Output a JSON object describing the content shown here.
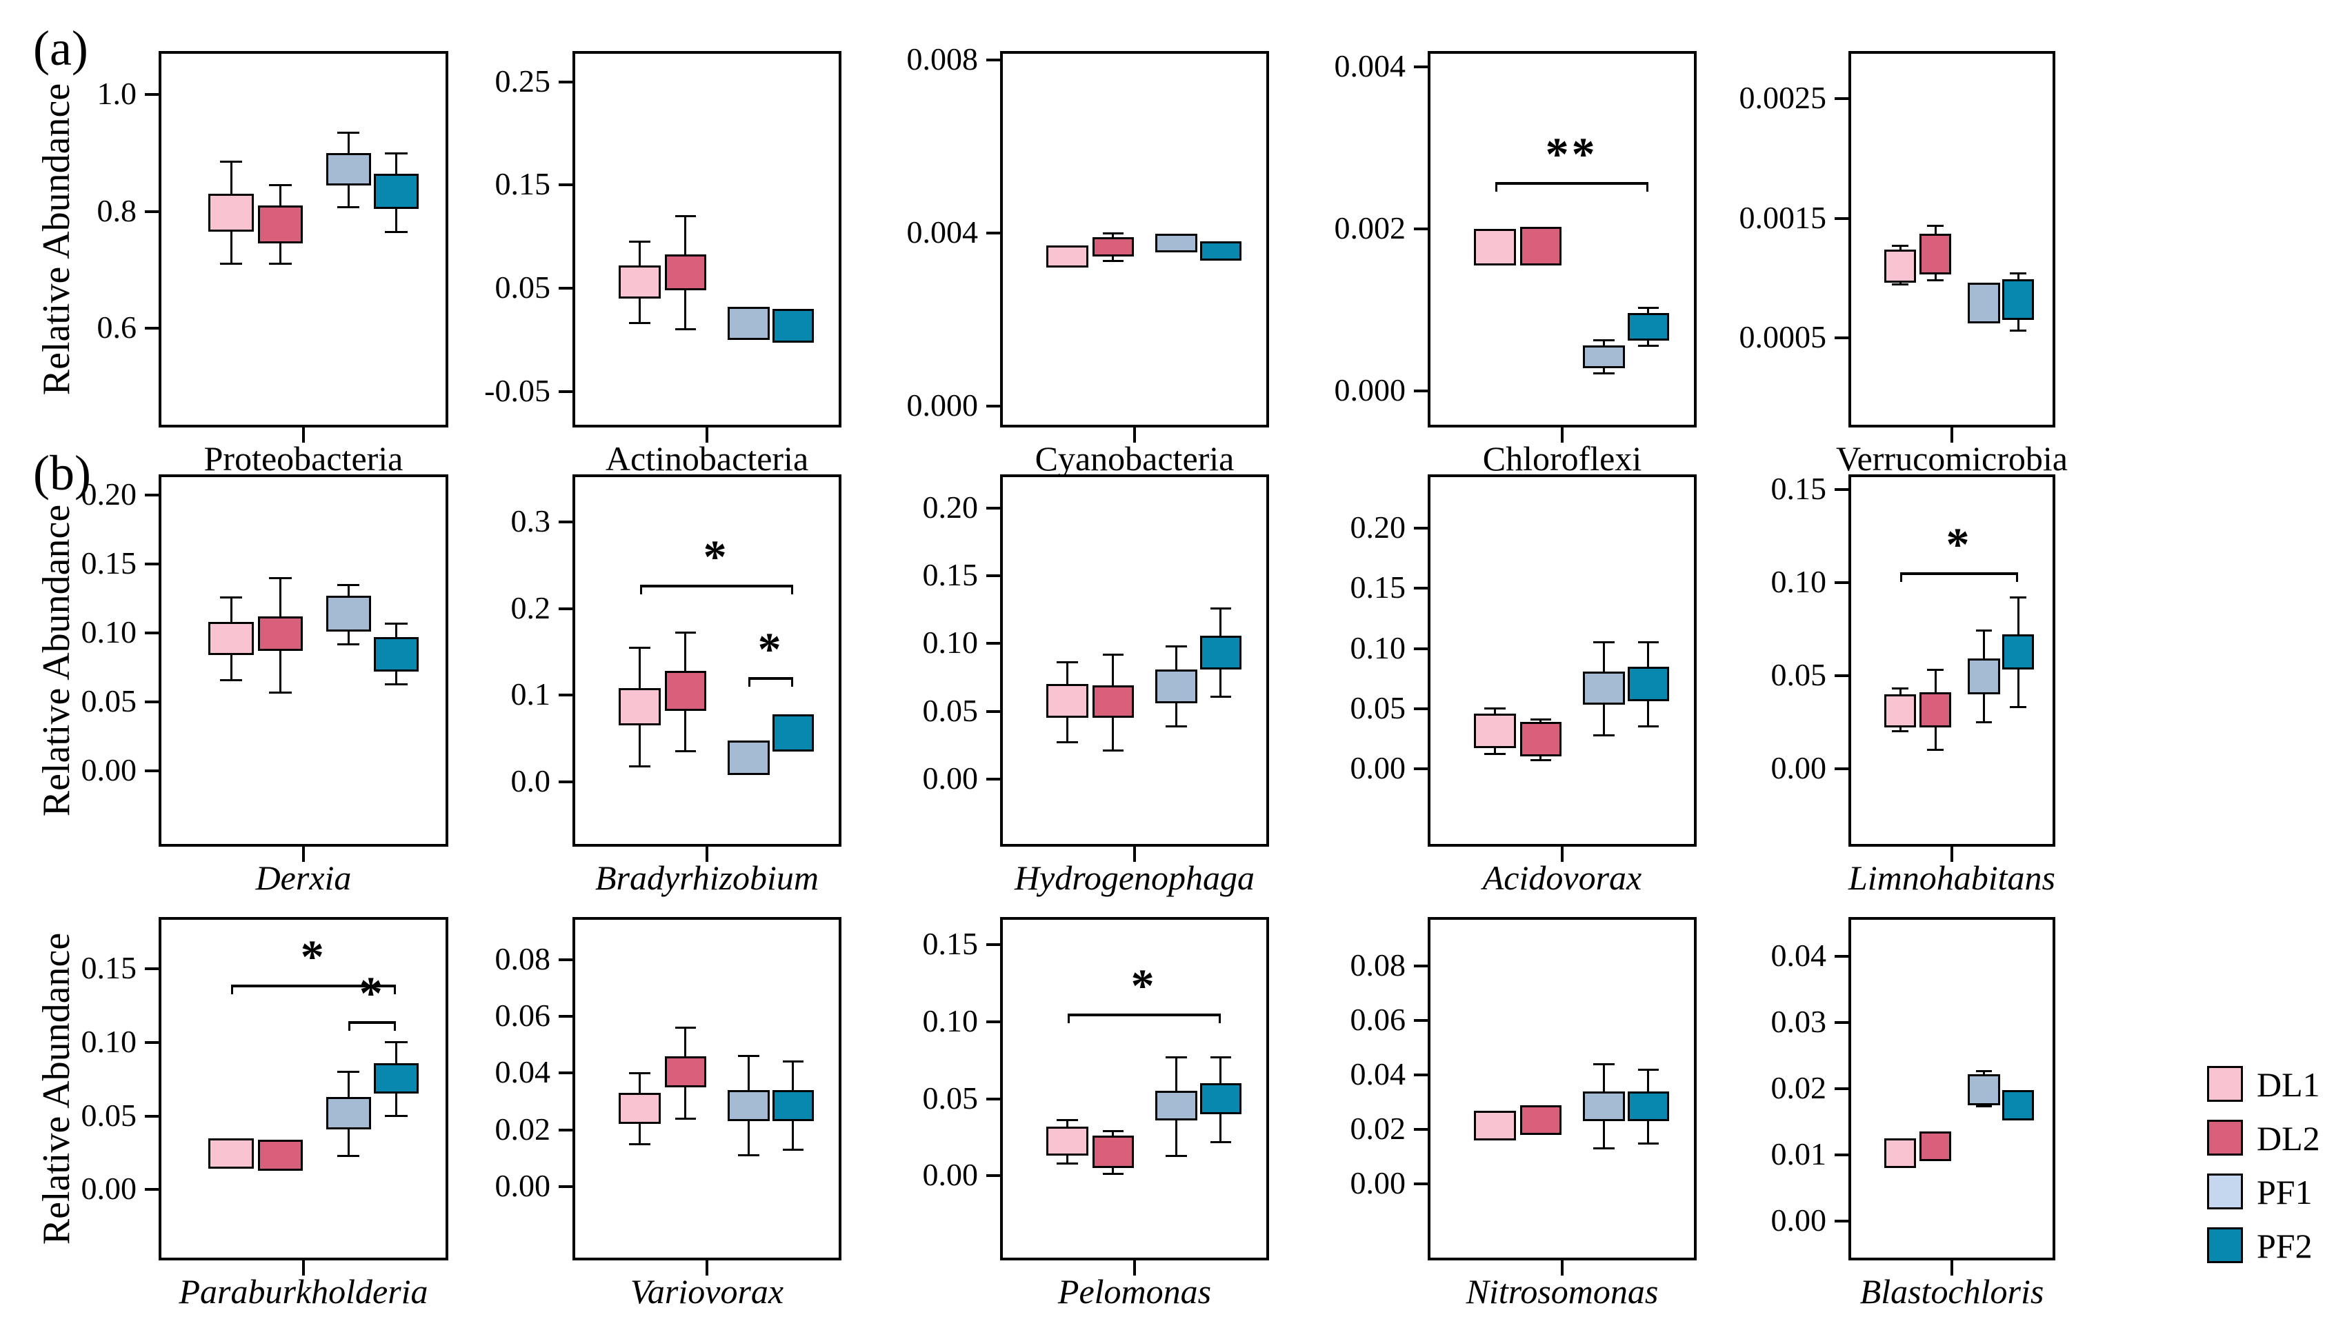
{
  "figure": {
    "panel_a_label": "(a)",
    "panel_b_label": "(b)"
  },
  "ylabel": "Relative Abundance",
  "legend": {
    "items": [
      {
        "label": "DL1",
        "color": "#F9C3D2"
      },
      {
        "label": "DL2",
        "color": "#D9607A"
      },
      {
        "label": "PF1",
        "color": "#C4D7EE"
      },
      {
        "label": "PF2",
        "color": "#0887AF"
      }
    ]
  },
  "series_colors": {
    "DL1": "#F9C3D2",
    "DL2": "#D9607A",
    "PF1": "#A5BBD3",
    "PF2": "#0887AF"
  },
  "chart_data": {
    "type": "grouped_boxplot",
    "groups": [
      "DL1",
      "DL2",
      "PF1",
      "PF2"
    ],
    "ylabel": "Relative Abundance",
    "legend_position": "bottom-right",
    "rows": [
      {
        "section": "a",
        "panels": [
          {
            "taxon": "Proteobacteria",
            "italic": false,
            "ymin": 0.43,
            "ymax": 1.075,
            "tick_values": [
              1.0,
              0.8,
              0.6
            ],
            "tick_labels": [
              "1.0",
              "0.8",
              "0.6"
            ],
            "boxes": [
              {
                "group": "DL1",
                "q1": 0.765,
                "q3": 0.83,
                "wlo": 0.71,
                "whi": 0.885
              },
              {
                "group": "DL2",
                "q1": 0.745,
                "q3": 0.81,
                "wlo": 0.71,
                "whi": 0.845
              },
              {
                "group": "PF1",
                "q1": 0.845,
                "q3": 0.9,
                "wlo": 0.808,
                "whi": 0.935
              },
              {
                "group": "PF2",
                "q1": 0.805,
                "q3": 0.865,
                "wlo": 0.765,
                "whi": 0.9
              }
            ],
            "brackets": []
          },
          {
            "taxon": "Actinobacteria",
            "italic": false,
            "ymin": -0.085,
            "ymax": 0.28,
            "tick_values": [
              0.25,
              0.15,
              0.05,
              -0.05
            ],
            "tick_labels": [
              "0.25",
              "0.15",
              "0.05",
              "-0.05"
            ],
            "boxes": [
              {
                "group": "DL1",
                "q1": 0.04,
                "q3": 0.072,
                "wlo": 0.016,
                "whi": 0.095
              },
              {
                "group": "DL2",
                "q1": 0.048,
                "q3": 0.083,
                "wlo": 0.01,
                "whi": 0.12
              },
              {
                "group": "PF1",
                "q1": 0.0,
                "q3": 0.032
              },
              {
                "group": "PF2",
                "q1": -0.003,
                "q3": 0.03
              }
            ],
            "brackets": []
          },
          {
            "taxon": "Cyanobacteria",
            "italic": false,
            "ymin": -0.0005,
            "ymax": 0.0082,
            "tick_values": [
              0.008,
              0.004,
              0.0
            ],
            "tick_labels": [
              "0.008",
              "0.004",
              "0.000"
            ],
            "boxes": [
              {
                "group": "DL1",
                "q1": 0.0032,
                "q3": 0.0037
              },
              {
                "group": "DL2",
                "q1": 0.00345,
                "q3": 0.0039,
                "wlo": 0.00335,
                "whi": 0.00398
              },
              {
                "group": "PF1",
                "q1": 0.00355,
                "q3": 0.00398
              },
              {
                "group": "PF2",
                "q1": 0.00335,
                "q3": 0.0038
              }
            ],
            "brackets": []
          },
          {
            "taxon": "Chloroflexi",
            "italic": false,
            "ymin": -0.00045,
            "ymax": 0.0042,
            "tick_values": [
              0.004,
              0.002,
              0.0
            ],
            "tick_labels": [
              "0.004",
              "0.002",
              "0.000"
            ],
            "boxes": [
              {
                "group": "DL1",
                "q1": 0.00155,
                "q3": 0.002
              },
              {
                "group": "DL2",
                "q1": 0.00155,
                "q3": 0.00203
              },
              {
                "group": "PF1",
                "q1": 0.00028,
                "q3": 0.00056,
                "wlo": 0.00022,
                "whi": 0.00063
              },
              {
                "group": "PF2",
                "q1": 0.00062,
                "q3": 0.00096,
                "wlo": 0.00056,
                "whi": 0.00103
              }
            ],
            "brackets": [
              {
                "from": 0,
                "to": 3,
                "y": 0.00252,
                "label": "**"
              }
            ]
          },
          {
            "taxon": "Verrucomicrobia",
            "italic": false,
            "ymin": -0.00025,
            "ymax": 0.0029,
            "tick_values": [
              0.0025,
              0.0015,
              0.0005
            ],
            "tick_labels": [
              "0.0025",
              "0.0015",
              "0.0005"
            ],
            "boxes": [
              {
                "group": "DL1",
                "q1": 0.00096,
                "q3": 0.00124,
                "wlo": 0.00095,
                "whi": 0.00127
              },
              {
                "group": "DL2",
                "q1": 0.00103,
                "q3": 0.00137,
                "wlo": 0.00098,
                "whi": 0.00144
              },
              {
                "group": "PF1",
                "q1": 0.00062,
                "q3": 0.00096
              },
              {
                "group": "PF2",
                "q1": 0.00065,
                "q3": 0.00099,
                "wlo": 0.00056,
                "whi": 0.00104
              }
            ],
            "brackets": []
          }
        ]
      },
      {
        "section": "b",
        "panels": [
          {
            "taxon": "Derxia",
            "italic": true,
            "ymin": -0.055,
            "ymax": 0.215,
            "tick_values": [
              0.2,
              0.15,
              0.1,
              0.05,
              0.0
            ],
            "tick_labels": [
              "0.20",
              "0.15",
              "0.10",
              "0.05",
              "0.00"
            ],
            "boxes": [
              {
                "group": "DL1",
                "q1": 0.084,
                "q3": 0.108,
                "wlo": 0.066,
                "whi": 0.126
              },
              {
                "group": "DL2",
                "q1": 0.087,
                "q3": 0.112,
                "wlo": 0.057,
                "whi": 0.14
              },
              {
                "group": "PF1",
                "q1": 0.101,
                "q3": 0.127,
                "wlo": 0.092,
                "whi": 0.135
              },
              {
                "group": "PF2",
                "q1": 0.072,
                "q3": 0.097,
                "wlo": 0.063,
                "whi": 0.107
              }
            ],
            "brackets": []
          },
          {
            "taxon": "Bradyrhizobium",
            "italic": true,
            "ymin": -0.075,
            "ymax": 0.355,
            "tick_values": [
              0.3,
              0.2,
              0.1,
              0.0
            ],
            "tick_labels": [
              "0.3",
              "0.2",
              "0.1",
              "0.0"
            ],
            "boxes": [
              {
                "group": "DL1",
                "q1": 0.065,
                "q3": 0.108,
                "wlo": 0.018,
                "whi": 0.155
              },
              {
                "group": "DL2",
                "q1": 0.082,
                "q3": 0.128,
                "wlo": 0.035,
                "whi": 0.172
              },
              {
                "group": "PF1",
                "q1": 0.008,
                "q3": 0.048
              },
              {
                "group": "PF2",
                "q1": 0.035,
                "q3": 0.078
              }
            ],
            "brackets": [
              {
                "from": 0,
                "to": 3,
                "y": 0.222,
                "label": "*"
              },
              {
                "from": 2,
                "to": 3,
                "y": 0.115,
                "label": "*"
              }
            ]
          },
          {
            "taxon": "Hydrogenophaga",
            "italic": true,
            "ymin": -0.05,
            "ymax": 0.225,
            "tick_values": [
              0.2,
              0.15,
              0.1,
              0.05,
              0.0
            ],
            "tick_labels": [
              "0.20",
              "0.15",
              "0.10",
              "0.05",
              "0.00"
            ],
            "boxes": [
              {
                "group": "DL1",
                "q1": 0.045,
                "q3": 0.07,
                "wlo": 0.027,
                "whi": 0.086
              },
              {
                "group": "DL2",
                "q1": 0.045,
                "q3": 0.069,
                "wlo": 0.021,
                "whi": 0.092
              },
              {
                "group": "PF1",
                "q1": 0.056,
                "q3": 0.081,
                "wlo": 0.039,
                "whi": 0.098
              },
              {
                "group": "PF2",
                "q1": 0.081,
                "q3": 0.106,
                "wlo": 0.061,
                "whi": 0.126
              }
            ],
            "brackets": []
          },
          {
            "taxon": "Acidovorax",
            "italic": true,
            "ymin": -0.065,
            "ymax": 0.245,
            "tick_values": [
              0.2,
              0.15,
              0.1,
              0.05,
              0.0
            ],
            "tick_labels": [
              "0.20",
              "0.15",
              "0.10",
              "0.05",
              "0.00"
            ],
            "boxes": [
              {
                "group": "DL1",
                "q1": 0.017,
                "q3": 0.046,
                "wlo": 0.012,
                "whi": 0.05
              },
              {
                "group": "DL2",
                "q1": 0.01,
                "q3": 0.039,
                "wlo": 0.007,
                "whi": 0.041
              },
              {
                "group": "PF1",
                "q1": 0.053,
                "q3": 0.081,
                "wlo": 0.028,
                "whi": 0.105
              },
              {
                "group": "PF2",
                "q1": 0.056,
                "q3": 0.085,
                "wlo": 0.035,
                "whi": 0.105
              }
            ],
            "brackets": []
          },
          {
            "taxon": "Limnohabitans",
            "italic": true,
            "ymin": -0.042,
            "ymax": 0.158,
            "tick_values": [
              0.15,
              0.1,
              0.05,
              0.0
            ],
            "tick_labels": [
              "0.15",
              "0.10",
              "0.05",
              "0.00"
            ],
            "boxes": [
              {
                "group": "DL1",
                "q1": 0.022,
                "q3": 0.04,
                "wlo": 0.02,
                "whi": 0.043
              },
              {
                "group": "DL2",
                "q1": 0.022,
                "q3": 0.041,
                "wlo": 0.01,
                "whi": 0.053
              },
              {
                "group": "PF1",
                "q1": 0.04,
                "q3": 0.059,
                "wlo": 0.025,
                "whi": 0.074
              },
              {
                "group": "PF2",
                "q1": 0.053,
                "q3": 0.072,
                "wlo": 0.033,
                "whi": 0.092
              }
            ],
            "brackets": [
              {
                "from": 0,
                "to": 3,
                "y": 0.103,
                "label": "*"
              }
            ]
          }
        ]
      },
      {
        "section": "",
        "panels": [
          {
            "taxon": "Paraburkholderia",
            "italic": true,
            "ymin": -0.048,
            "ymax": 0.185,
            "tick_values": [
              0.15,
              0.1,
              0.05,
              0.0
            ],
            "tick_labels": [
              "0.15",
              "0.10",
              "0.05",
              "0.00"
            ],
            "boxes": [
              {
                "group": "DL1",
                "q1": 0.014,
                "q3": 0.035
              },
              {
                "group": "DL2",
                "q1": 0.013,
                "q3": 0.034
              },
              {
                "group": "PF1",
                "q1": 0.041,
                "q3": 0.063,
                "wlo": 0.023,
                "whi": 0.08
              },
              {
                "group": "PF2",
                "q1": 0.065,
                "q3": 0.086,
                "wlo": 0.05,
                "whi": 0.1
              }
            ],
            "brackets": [
              {
                "from": 0,
                "to": 3,
                "y": 0.136,
                "label": "*"
              },
              {
                "from": 2,
                "to": 3,
                "y": 0.111,
                "label": "*"
              }
            ]
          },
          {
            "taxon": "Variovorax",
            "italic": true,
            "ymin": -0.026,
            "ymax": 0.095,
            "tick_values": [
              0.08,
              0.06,
              0.04,
              0.02,
              0.0
            ],
            "tick_labels": [
              "0.08",
              "0.06",
              "0.04",
              "0.02",
              "0.00"
            ],
            "boxes": [
              {
                "group": "DL1",
                "q1": 0.022,
                "q3": 0.033,
                "wlo": 0.015,
                "whi": 0.04
              },
              {
                "group": "DL2",
                "q1": 0.035,
                "q3": 0.046,
                "wlo": 0.024,
                "whi": 0.056
              },
              {
                "group": "PF1",
                "q1": 0.023,
                "q3": 0.034,
                "wlo": 0.011,
                "whi": 0.046
              },
              {
                "group": "PF2",
                "q1": 0.023,
                "q3": 0.034,
                "wlo": 0.013,
                "whi": 0.044
              }
            ],
            "brackets": []
          },
          {
            "taxon": "Pelomonas",
            "italic": true,
            "ymin": -0.055,
            "ymax": 0.168,
            "tick_values": [
              0.15,
              0.1,
              0.05,
              0.0
            ],
            "tick_labels": [
              "0.15",
              "0.10",
              "0.05",
              "0.00"
            ],
            "boxes": [
              {
                "group": "DL1",
                "q1": 0.013,
                "q3": 0.032,
                "wlo": 0.008,
                "whi": 0.036
              },
              {
                "group": "DL2",
                "q1": 0.005,
                "q3": 0.026,
                "wlo": 0.001,
                "whi": 0.029
              },
              {
                "group": "PF1",
                "q1": 0.036,
                "q3": 0.055,
                "wlo": 0.013,
                "whi": 0.077
              },
              {
                "group": "PF2",
                "q1": 0.04,
                "q3": 0.06,
                "wlo": 0.022,
                "whi": 0.077
              }
            ],
            "brackets": [
              {
                "from": 0,
                "to": 3,
                "y": 0.102,
                "label": "*"
              }
            ]
          },
          {
            "taxon": "Nitrosomonas",
            "italic": true,
            "ymin": -0.028,
            "ymax": 0.098,
            "tick_values": [
              0.08,
              0.06,
              0.04,
              0.02,
              0.0
            ],
            "tick_labels": [
              "0.08",
              "0.06",
              "0.04",
              "0.02",
              "0.00"
            ],
            "boxes": [
              {
                "group": "DL1",
                "q1": 0.016,
                "q3": 0.027
              },
              {
                "group": "DL2",
                "q1": 0.018,
                "q3": 0.029
              },
              {
                "group": "PF1",
                "q1": 0.023,
                "q3": 0.034,
                "wlo": 0.013,
                "whi": 0.044
              },
              {
                "group": "PF2",
                "q1": 0.023,
                "q3": 0.034,
                "wlo": 0.015,
                "whi": 0.042
              }
            ],
            "brackets": []
          },
          {
            "taxon": "Blastochloris",
            "italic": true,
            "ymin": -0.006,
            "ymax": 0.046,
            "tick_values": [
              0.04,
              0.03,
              0.02,
              0.01,
              0.0
            ],
            "tick_labels": [
              "0.04",
              "0.03",
              "0.02",
              "0.01",
              "0.00"
            ],
            "boxes": [
              {
                "group": "DL1",
                "q1": 0.008,
                "q3": 0.0125
              },
              {
                "group": "DL2",
                "q1": 0.009,
                "q3": 0.0135
              },
              {
                "group": "PF1",
                "q1": 0.0175,
                "q3": 0.0222,
                "wlo": 0.0173,
                "whi": 0.0227
              },
              {
                "group": "PF2",
                "q1": 0.0152,
                "q3": 0.0198
              }
            ],
            "brackets": []
          }
        ]
      }
    ]
  }
}
